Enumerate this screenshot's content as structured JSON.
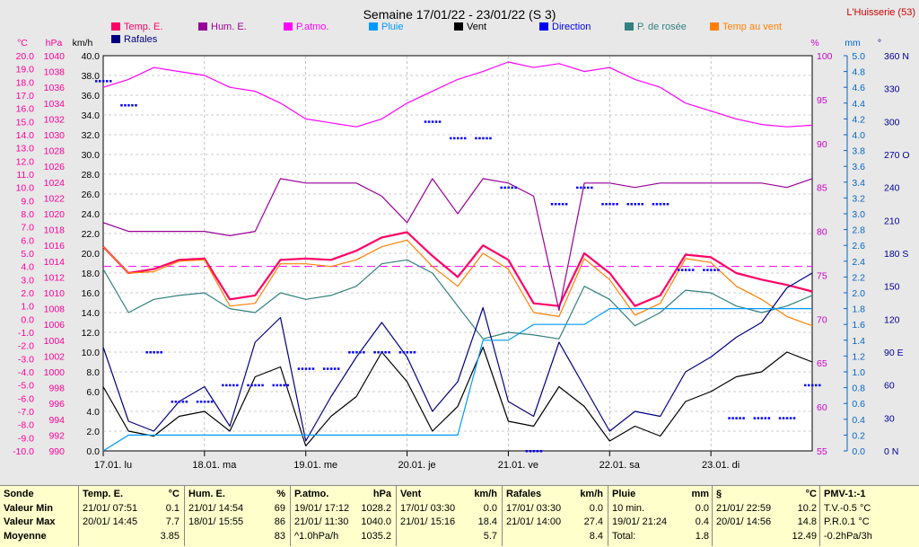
{
  "chart_data": {
    "type": "line",
    "title": "Semaine 17/01/22 - 23/01/22 (S 3)",
    "station": "L'Huisserie (53)",
    "days": [
      "17.01. lu",
      "18.01. ma",
      "19.01. me",
      "20.01. je",
      "21.01. ve",
      "22.01. sa",
      "23.01. di"
    ],
    "axes": {
      "temp": {
        "unit": "°C",
        "min": -10,
        "max": 20,
        "step": 1,
        "color": "#ff0099"
      },
      "pressure": {
        "unit": "hPa",
        "min": 990,
        "max": 1040,
        "step": 2,
        "color": "#ff0099"
      },
      "wind": {
        "unit": "km/h",
        "min": 0,
        "max": 40,
        "step": 2,
        "color": "#000000"
      },
      "humidity": {
        "unit": "%",
        "min": 55,
        "max": 100,
        "step": 5,
        "color": "#cc00cc"
      },
      "rain": {
        "unit": "mm",
        "min": 0,
        "max": 5,
        "step": 0.2,
        "color": "#0066cc"
      },
      "direction": {
        "unit": "°",
        "min": 0,
        "max": 360,
        "step": 30,
        "color": "#000099",
        "labels": {
          "0": "0 N",
          "90": "90 E",
          "180": "180 S",
          "270": "270 O",
          "360": "360 N"
        }
      }
    },
    "legend": [
      {
        "name": "Temp. E.",
        "color": "#ff0066"
      },
      {
        "name": "Hum. E.",
        "color": "#990099"
      },
      {
        "name": "P.atmo.",
        "color": "#ff00ff"
      },
      {
        "name": "Pluie",
        "color": "#0099ff"
      },
      {
        "name": "Vent",
        "color": "#000000"
      },
      {
        "name": "Direction",
        "color": "#0000ff"
      },
      {
        "name": "P. de rosée",
        "color": "#338080"
      },
      {
        "name": "Temp au vent",
        "color": "#ff8000"
      },
      {
        "name": "Rafales",
        "color": "#000080"
      }
    ],
    "x_hours": [
      0,
      6,
      12,
      18,
      24,
      30,
      36,
      42,
      48,
      54,
      60,
      66,
      72,
      78,
      84,
      90,
      96,
      102,
      108,
      114,
      120,
      126,
      132,
      138,
      144,
      150,
      156,
      162,
      168
    ],
    "series": [
      {
        "name": "Temp. E.",
        "axis": "temp",
        "color": "#ff0066",
        "values": [
          5.5,
          3.5,
          3.8,
          4.5,
          4.6,
          1.5,
          1.8,
          4.5,
          4.6,
          4.5,
          5.2,
          6.2,
          6.6,
          4.8,
          3.2,
          5.6,
          4.5,
          1.2,
          1.0,
          5.0,
          3.5,
          1.0,
          1.8,
          4.9,
          4.7,
          3.5,
          3.0,
          2.6,
          2.1
        ]
      },
      {
        "name": "Temp au vent",
        "axis": "temp",
        "color": "#ff8000",
        "values": [
          5.5,
          3.5,
          3.6,
          4.4,
          4.5,
          1.0,
          1.2,
          4.2,
          4.2,
          4.0,
          4.5,
          5.5,
          6.0,
          4.0,
          2.5,
          5.0,
          3.8,
          0.5,
          0.2,
          4.6,
          3.0,
          0.3,
          1.2,
          4.6,
          4.3,
          2.5,
          1.5,
          0.2,
          -0.5
        ]
      },
      {
        "name": "P. de rosée",
        "axis": "temp",
        "color": "#338080",
        "values": [
          3.8,
          0.5,
          1.5,
          1.8,
          2.0,
          0.8,
          0.5,
          2.0,
          1.5,
          1.8,
          2.5,
          4.2,
          4.5,
          3.5,
          1.0,
          -1.5,
          -1.0,
          -1.2,
          -1.5,
          2.5,
          1.5,
          -0.5,
          0.5,
          2.2,
          2.0,
          1.0,
          0.5,
          1.0,
          1.8
        ]
      },
      {
        "name": "P.atmo.",
        "axis": "pressure",
        "color": "#ff00ff",
        "values": [
          1036,
          1037,
          1038.5,
          1038,
          1037.5,
          1036,
          1035.5,
          1034,
          1032,
          1031.5,
          1031,
          1032,
          1034,
          1035.5,
          1037,
          1038,
          1039.2,
          1038.5,
          1039,
          1038,
          1038.5,
          1037,
          1036,
          1034,
          1033,
          1032,
          1031.3,
          1031,
          1031.2
        ]
      },
      {
        "name": "Hum. E.",
        "axis": "humidity",
        "color": "#990099",
        "values": [
          81,
          80,
          80,
          80,
          80,
          79.5,
          80,
          86,
          85.5,
          85.5,
          85.5,
          84,
          81,
          86,
          82,
          86,
          85.5,
          84,
          71,
          85.5,
          85.5,
          85,
          85.5,
          85.5,
          85.5,
          85.5,
          85.5,
          85,
          86
        ]
      },
      {
        "name": "Vent",
        "axis": "wind",
        "color": "#000000",
        "values": [
          6.5,
          2.0,
          1.5,
          3.5,
          4.0,
          2.0,
          7.5,
          8.5,
          0.5,
          3.5,
          5.5,
          10.0,
          7.0,
          2.0,
          4.5,
          10.5,
          3.0,
          2.5,
          6.5,
          4.5,
          1.0,
          2.5,
          1.5,
          5.0,
          6.0,
          7.5,
          8.0,
          10.0,
          9.0
        ]
      },
      {
        "name": "Rafales",
        "axis": "wind",
        "color": "#000080",
        "values": [
          10.5,
          3.0,
          2.0,
          5.0,
          6.5,
          2.5,
          11.0,
          13.5,
          1.0,
          5.5,
          9.5,
          13.0,
          9.5,
          4.0,
          7.0,
          14.5,
          5.0,
          3.5,
          11.0,
          6.5,
          2.0,
          4.0,
          3.5,
          8.0,
          9.5,
          11.5,
          13.0,
          16.5,
          18.0
        ]
      },
      {
        "name": "Pluie",
        "axis": "rain",
        "color": "#0099ff",
        "values": [
          0.0,
          0.2,
          0.2,
          0.2,
          0.2,
          0.2,
          0.2,
          0.2,
          0.2,
          0.2,
          0.2,
          0.2,
          0.2,
          0.2,
          0.2,
          1.4,
          1.4,
          1.6,
          1.6,
          1.6,
          1.8,
          1.8,
          1.8,
          1.8,
          1.8,
          1.8,
          1.8,
          1.8,
          1.8
        ]
      },
      {
        "name": "Direction",
        "axis": "direction",
        "color": "#0000ff",
        "values": [
          337,
          315,
          90,
          45,
          45,
          60,
          60,
          60,
          75,
          75,
          90,
          90,
          90,
          300,
          285,
          285,
          240,
          0,
          225,
          240,
          225,
          225,
          225,
          165,
          165,
          30,
          30,
          30,
          60
        ]
      }
    ],
    "reference_lines": [
      {
        "axis": "temp",
        "value": 4.0,
        "color": "#ff00ff",
        "style": "dashed"
      }
    ]
  },
  "footer": {
    "columns": [
      {
        "title": "Sonde",
        "unit": "",
        "rows": [
          [
            "Valeur Min",
            ""
          ],
          [
            "Valeur Max",
            ""
          ],
          [
            "Moyenne",
            ""
          ]
        ]
      },
      {
        "title": "Temp. E.",
        "unit": "°C",
        "rows": [
          [
            "21/01/ 07:51",
            "0.1"
          ],
          [
            "20/01/ 14:45",
            "7.7"
          ],
          [
            "",
            "3.85"
          ]
        ]
      },
      {
        "title": "Hum. E.",
        "unit": "%",
        "rows": [
          [
            "21/01/ 14:54",
            "69"
          ],
          [
            "18/01/ 15:55",
            "86"
          ],
          [
            "",
            "83"
          ]
        ]
      },
      {
        "title": "P.atmo.",
        "unit": "hPa",
        "rows": [
          [
            "19/01/ 17:12",
            "1028.2"
          ],
          [
            "21/01/ 11:30",
            "1040.0"
          ],
          [
            "^1.0hPa/h",
            "1035.2"
          ]
        ]
      },
      {
        "title": "Vent",
        "unit": "km/h",
        "rows": [
          [
            "17/01/ 03:30",
            "0.0"
          ],
          [
            "21/01/ 15:16",
            "18.4"
          ],
          [
            "",
            "5.7"
          ]
        ]
      },
      {
        "title": "Rafales",
        "unit": "km/h",
        "rows": [
          [
            "17/01/ 03:30",
            "0.0"
          ],
          [
            "21/01/ 14:00",
            "27.4"
          ],
          [
            "",
            "8.4"
          ]
        ]
      },
      {
        "title": "Pluie",
        "unit": "mm",
        "rows": [
          [
            "10 min.",
            "0.0"
          ],
          [
            "19/01/ 21:24",
            "0.4"
          ],
          [
            "Total:",
            "1.8"
          ]
        ]
      },
      {
        "title": "§",
        "unit": "°C",
        "rows": [
          [
            "21/01/ 22:59",
            "10.2"
          ],
          [
            "20/01/ 14:56",
            "14.8"
          ],
          [
            "",
            "12.49"
          ]
        ]
      },
      {
        "title": "PMV-1:-1",
        "unit": "",
        "rows": [
          [
            "T.V.-0.5 °C",
            ""
          ],
          [
            "P.R.0.1 °C",
            ""
          ],
          [
            "-0.2hPa/3h",
            ""
          ]
        ]
      }
    ]
  }
}
